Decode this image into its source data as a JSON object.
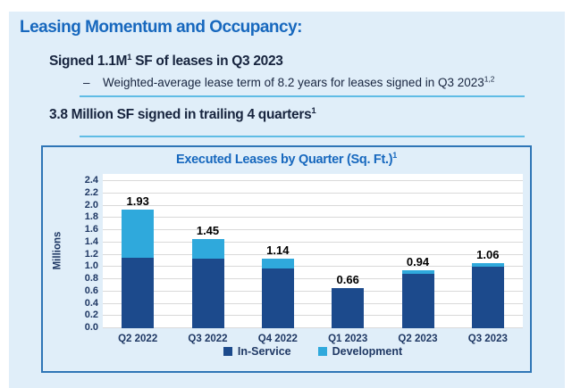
{
  "colors": {
    "slide-bg": "#E0EEF9",
    "title-blue": "#1768BE",
    "navy": "#17243E",
    "axis-navy": "#1F3864",
    "bar-dark": "#1C4A8C",
    "bar-light": "#2FA9DC",
    "rule-blue": "#5FBCE5",
    "panel-border": "#2E75B6",
    "grid-line": "#D9D9D9",
    "value-label": "#000000"
  },
  "header": {
    "title": "Leasing Momentum and Occupancy:"
  },
  "bullets": {
    "signed": {
      "pre": "Signed 1.1M",
      "sup": "1",
      "post": " SF of leases in Q3 2023"
    },
    "weighted": {
      "dash": "–",
      "text": "Weighted-average  lease term of 8.2 years for leases signed in Q3 2023",
      "sup": "1,2"
    },
    "trailing": {
      "text": "3.8 Million SF signed in trailing 4 quarters",
      "sup": "1"
    }
  },
  "chart_data": {
    "type": "bar",
    "stacked": true,
    "title": "Executed Leases by Quarter (Sq. Ft.)",
    "title_superscript": "1",
    "ylabel": "Millions",
    "ylim": [
      0,
      2.4
    ],
    "ytick_step": 0.2,
    "grid": true,
    "legend_position": "bottom",
    "categories": [
      "Q2 2022",
      "Q3 2022",
      "Q4 2022",
      "Q1 2023",
      "Q2 2023",
      "Q3 2023"
    ],
    "series": [
      {
        "name": "In-Service",
        "color": "#1C4A8C",
        "values": [
          1.15,
          1.13,
          0.98,
          0.66,
          0.89,
          1.0
        ]
      },
      {
        "name": "Development",
        "color": "#2FA9DC",
        "values": [
          0.78,
          0.32,
          0.16,
          0.0,
          0.05,
          0.06
        ]
      }
    ],
    "totals": [
      1.93,
      1.45,
      1.14,
      0.66,
      0.94,
      1.06
    ],
    "totals_labels": [
      "1.93",
      "1.45",
      "1.14",
      "0.66",
      "0.94",
      "1.06"
    ]
  }
}
